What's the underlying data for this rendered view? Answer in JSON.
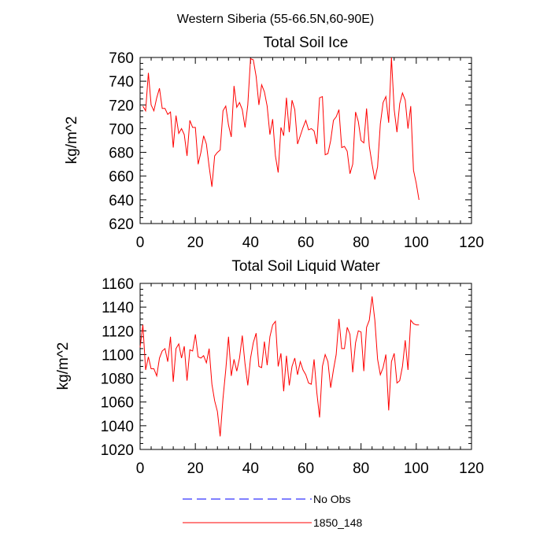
{
  "figure_title": "Western Siberia (55-66.5N,60-90E)",
  "legend": {
    "items": [
      {
        "label": "No Obs",
        "color": "#0000ff",
        "style": "dashed"
      },
      {
        "label": "1850_148",
        "color": "#ff0000",
        "style": "solid"
      }
    ]
  },
  "chart_data": [
    {
      "type": "line",
      "title": "Total Soil Ice",
      "xlabel": "",
      "ylabel": "kg/m^2",
      "xlim": [
        0,
        120
      ],
      "ylim": [
        620,
        760
      ],
      "xticks": [
        0,
        20,
        40,
        60,
        80,
        100,
        120
      ],
      "yticks": [
        620,
        640,
        660,
        680,
        700,
        720,
        740,
        760
      ],
      "grid": false,
      "series": [
        {
          "name": "1850_148",
          "color": "#ff0000",
          "x": [
            1,
            2,
            3,
            4,
            5,
            6,
            7,
            8,
            9,
            10,
            11,
            12,
            13,
            14,
            15,
            16,
            17,
            18,
            19,
            20,
            21,
            22,
            23,
            24,
            25,
            26,
            27,
            28,
            29,
            30,
            31,
            32,
            33,
            34,
            35,
            36,
            37,
            38,
            39,
            40,
            41,
            42,
            43,
            44,
            45,
            46,
            47,
            48,
            49,
            50,
            51,
            52,
            53,
            54,
            55,
            56,
            57,
            58,
            59,
            60,
            61,
            62,
            63,
            64,
            65,
            66,
            67,
            68,
            69,
            70,
            71,
            72,
            73,
            74,
            75,
            76,
            77,
            78,
            79,
            80,
            81,
            82,
            83,
            84,
            85,
            86,
            87,
            88,
            89,
            90,
            91,
            92,
            93,
            94,
            95,
            96,
            97,
            98,
            99,
            100,
            101
          ],
          "y": [
            719,
            715,
            747,
            720,
            715,
            726,
            734,
            717,
            717,
            712,
            714,
            684,
            711,
            696,
            700,
            695,
            677,
            707,
            701,
            701,
            670,
            680,
            694,
            687,
            668,
            651,
            677,
            680,
            682,
            715,
            719,
            703,
            693,
            736,
            718,
            722,
            716,
            701,
            720,
            759,
            758,
            744,
            720,
            737,
            731,
            719,
            695,
            708,
            677,
            663,
            701,
            694,
            726,
            697,
            724,
            716,
            687,
            694,
            701,
            707,
            699,
            700,
            698,
            687,
            726,
            727,
            678,
            679,
            690,
            707,
            710,
            716,
            684,
            685,
            681,
            662,
            670,
            714,
            706,
            690,
            688,
            717,
            685,
            670,
            657,
            668,
            704,
            722,
            727,
            705,
            760,
            716,
            697,
            721,
            730,
            724,
            700,
            719,
            665,
            654,
            640
          ]
        }
      ]
    },
    {
      "type": "line",
      "title": "Total Soil Liquid Water",
      "xlabel": "",
      "ylabel": "kg/m^2",
      "xlim": [
        0,
        120
      ],
      "ylim": [
        1020,
        1160
      ],
      "xticks": [
        0,
        20,
        40,
        60,
        80,
        100,
        120
      ],
      "yticks": [
        1020,
        1040,
        1060,
        1080,
        1100,
        1120,
        1140,
        1160
      ],
      "grid": false,
      "series": [
        {
          "name": "1850_148",
          "color": "#ff0000",
          "x": [
            0,
            1,
            2,
            3,
            4,
            5,
            6,
            7,
            8,
            9,
            10,
            11,
            12,
            13,
            14,
            15,
            16,
            17,
            18,
            19,
            20,
            21,
            22,
            23,
            24,
            25,
            26,
            27,
            28,
            29,
            30,
            31,
            32,
            33,
            34,
            35,
            36,
            37,
            38,
            39,
            40,
            41,
            42,
            43,
            44,
            45,
            46,
            47,
            48,
            49,
            50,
            51,
            52,
            53,
            54,
            55,
            56,
            57,
            58,
            59,
            60,
            61,
            62,
            63,
            64,
            65,
            66,
            67,
            68,
            69,
            70,
            71,
            72,
            73,
            74,
            75,
            76,
            77,
            78,
            79,
            80,
            81,
            82,
            83,
            84,
            85,
            86,
            87,
            88,
            89,
            90,
            91,
            92,
            93,
            94,
            95,
            96,
            97,
            98,
            99,
            100,
            101
          ],
          "y": [
            1106,
            1125,
            1087,
            1098,
            1088,
            1088,
            1082,
            1097,
            1103,
            1105,
            1094,
            1115,
            1077,
            1105,
            1109,
            1097,
            1107,
            1078,
            1104,
            1103,
            1117,
            1098,
            1097,
            1099,
            1093,
            1105,
            1075,
            1061,
            1052,
            1031,
            1063,
            1087,
            1115,
            1082,
            1096,
            1086,
            1097,
            1116,
            1092,
            1074,
            1097,
            1110,
            1118,
            1090,
            1089,
            1111,
            1091,
            1115,
            1125,
            1128,
            1090,
            1101,
            1069,
            1099,
            1074,
            1090,
            1097,
            1083,
            1094,
            1087,
            1083,
            1076,
            1075,
            1096,
            1068,
            1047,
            1090,
            1100,
            1094,
            1072,
            1087,
            1100,
            1130,
            1105,
            1105,
            1123,
            1117,
            1085,
            1110,
            1120,
            1119,
            1086,
            1123,
            1129,
            1149,
            1129,
            1096,
            1083,
            1089,
            1100,
            1053,
            1094,
            1101,
            1076,
            1078,
            1090,
            1112,
            1087,
            1129,
            1126,
            1125,
            1125
          ]
        }
      ]
    }
  ]
}
